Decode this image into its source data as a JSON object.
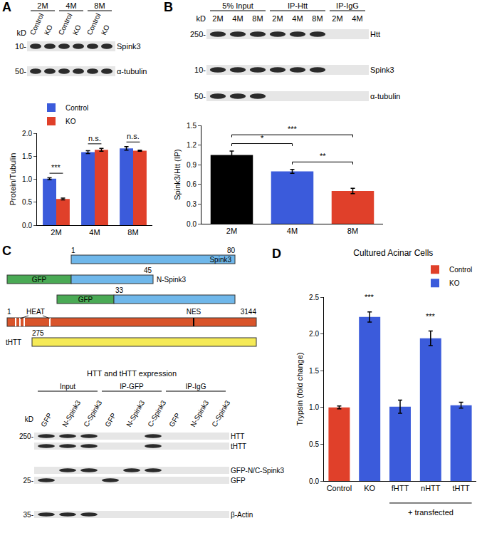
{
  "chart_data": [
    {
      "panel": "A",
      "type": "bar",
      "y_label": "Protein/Tubulin",
      "categories": [
        "2M",
        "4M",
        "8M"
      ],
      "series": [
        {
          "name": "Control",
          "color": "#3b5bdb",
          "values": [
            1.01,
            1.59,
            1.67
          ],
          "errors": [
            0.02,
            0.03,
            0.04
          ]
        },
        {
          "name": "KO",
          "color": "#e0402a",
          "values": [
            0.57,
            1.64,
            1.62
          ],
          "errors": [
            0.02,
            0.03,
            0.01
          ]
        }
      ],
      "ylim": [
        0,
        2
      ],
      "yticks": [
        {
          "value": 0,
          "label": "0.0"
        },
        {
          "value": 0.5,
          "label": "0.5"
        },
        {
          "value": 1,
          "label": "1.0"
        },
        {
          "value": 1.5,
          "label": "1.5"
        },
        {
          "value": 2,
          "label": "2.0"
        }
      ],
      "legend": "top-left",
      "annotations": [
        {
          "category": "2M",
          "text": "***"
        },
        {
          "category": "4M",
          "text": "n.s."
        },
        {
          "category": "8M",
          "text": "n.s."
        }
      ]
    },
    {
      "panel": "B",
      "type": "bar",
      "y_label": "Spink3/Htt (IP)",
      "categories": [
        "2M",
        "4M",
        "8M"
      ],
      "values": [
        1.05,
        0.8,
        0.5
      ],
      "errors": [
        0.06,
        0.03,
        0.04
      ],
      "colors": [
        "#000000",
        "#3b5bdb",
        "#e0402a"
      ],
      "ylim": [
        0,
        1.5
      ],
      "yticks": [
        {
          "value": 0,
          "label": "0.0"
        },
        {
          "value": 0.3,
          "label": "0.3"
        },
        {
          "value": 0.6,
          "label": "0.6"
        },
        {
          "value": 0.9,
          "label": "0.9"
        },
        {
          "value": 1.2,
          "label": "1.2"
        },
        {
          "value": 1.5,
          "label": "1.5"
        }
      ],
      "comparisons": [
        {
          "from": "2M",
          "to": "4M",
          "text": "*"
        },
        {
          "from": "4M",
          "to": "8M",
          "text": "**"
        },
        {
          "from": "2M",
          "to": "8M",
          "text": "***"
        }
      ]
    },
    {
      "panel": "D",
      "type": "bar",
      "title": "Cultured Acinar Cells",
      "y_label": "Trypsin (fold change)",
      "categories": [
        "Control",
        "KO",
        "fHTT",
        "nHTT",
        "tHTT"
      ],
      "series": [
        {
          "name": "Control",
          "color": "#e0402a",
          "values": [
            1.0,
            null,
            null,
            null,
            null
          ],
          "errors": [
            0.02,
            null,
            null,
            null,
            null
          ]
        },
        {
          "name": "KO",
          "color": "#3b5bdb",
          "values": [
            null,
            2.23,
            1.01,
            1.94,
            1.03
          ],
          "errors": [
            null,
            0.07,
            0.09,
            0.1,
            0.04
          ]
        }
      ],
      "ylim": [
        0,
        2.5
      ],
      "yticks": [
        {
          "value": 0,
          "label": "0.0"
        },
        {
          "value": 0.5,
          "label": "0.5"
        },
        {
          "value": 1,
          "label": "1.0"
        },
        {
          "value": 1.5,
          "label": "1.5"
        },
        {
          "value": 2,
          "label": "2.0"
        },
        {
          "value": 2.5,
          "label": "2.5"
        }
      ],
      "legend": "top-right",
      "annotations": [
        {
          "category": "KO",
          "text": "***"
        },
        {
          "category": "nHTT",
          "text": "***"
        }
      ],
      "group_label": {
        "from": "fHTT",
        "to": "tHTT",
        "text": "+ transfected"
      }
    }
  ],
  "blots": [
    {
      "panel": "A",
      "groups": [
        {
          "label": "2M",
          "lanes": [
            "Control",
            "KO"
          ]
        },
        {
          "label": "4M",
          "lanes": [
            "Control",
            "KO"
          ]
        },
        {
          "label": "8M",
          "lanes": [
            "Control",
            "KO"
          ]
        }
      ],
      "rows": [
        {
          "label": "Spink3",
          "bands": [
            true,
            true,
            true,
            true,
            true,
            true
          ]
        },
        {
          "label": "α-tubulin",
          "bands": [
            true,
            true,
            true,
            true,
            true,
            true
          ]
        }
      ],
      "markers": [
        {
          "label": "kD"
        },
        {
          "label": "10-",
          "row": 0
        },
        {
          "label": "50-",
          "row": 1
        }
      ]
    },
    {
      "panel": "B",
      "groups": [
        {
          "label": "5% Input",
          "lanes": [
            "2M",
            "4M",
            "8M"
          ]
        },
        {
          "label": "IP-Htt",
          "lanes": [
            "2M",
            "4M",
            "8M"
          ]
        },
        {
          "label": "IP-IgG",
          "lanes": [
            "2M",
            "4M"
          ]
        }
      ],
      "rows": [
        {
          "label": "Htt",
          "bands": [
            true,
            true,
            true,
            true,
            true,
            true,
            false,
            false
          ]
        },
        {
          "label": "Spink3",
          "bands": [
            true,
            true,
            true,
            true,
            true,
            true,
            false,
            false
          ]
        },
        {
          "label": "α-tubulin",
          "bands": [
            true,
            true,
            true,
            false,
            false,
            false,
            false,
            false
          ]
        }
      ],
      "markers": [
        {
          "label": "kD"
        },
        {
          "label": "250-",
          "row": 0
        },
        {
          "label": "10-",
          "row": 1
        },
        {
          "label": "50-",
          "row": 2
        }
      ]
    },
    {
      "panel": "C",
      "title": "HTT and tHTT expression",
      "groups": [
        {
          "label": "Input",
          "lanes": [
            "GFP",
            "N-Spink3",
            "C-Spink3"
          ]
        },
        {
          "label": "IP-GFP",
          "lanes": [
            "GFP",
            "N-Spink3",
            "C-Spink3"
          ]
        },
        {
          "label": "IP-IgG",
          "lanes": [
            "GFP",
            "N-Spink3",
            "C-Spink3"
          ]
        }
      ],
      "rows": [
        {
          "label": "HTT",
          "bands": [
            true,
            true,
            true,
            false,
            false,
            true,
            false,
            false,
            false
          ]
        },
        {
          "label": "tHTT",
          "bands": [
            true,
            true,
            true,
            false,
            false,
            true,
            false,
            false,
            false
          ]
        },
        {
          "label": "GFP-N/C-Spink3",
          "bands": [
            false,
            true,
            true,
            false,
            true,
            true,
            false,
            false,
            false
          ]
        },
        {
          "label": "GFP",
          "bands": [
            true,
            false,
            false,
            true,
            false,
            false,
            false,
            false,
            false
          ]
        },
        {
          "label": "β-Actin",
          "bands": [
            true,
            true,
            true,
            false,
            false,
            false,
            false,
            false,
            false
          ]
        }
      ],
      "markers": [
        {
          "label": "kD"
        },
        {
          "label": "250-",
          "row": 0
        },
        {
          "label": "25-",
          "row": 3
        },
        {
          "label": "35-",
          "row": 4
        }
      ]
    }
  ],
  "diagram": {
    "panel": "C",
    "spink3": {
      "label": "Spink3",
      "start": "1",
      "end": "80"
    },
    "n_spink3": {
      "tag": "GFP",
      "end": "45",
      "label": "N-Spink3"
    },
    "c_spink3": {
      "tag": "GFP",
      "start": "33"
    },
    "htt": {
      "start": "1",
      "end": "3144",
      "features": [
        "HEAT",
        "NES"
      ]
    },
    "thtt": {
      "label": "tHTT",
      "start": "275"
    }
  },
  "panel_letters": [
    "A",
    "B",
    "C",
    "D"
  ]
}
